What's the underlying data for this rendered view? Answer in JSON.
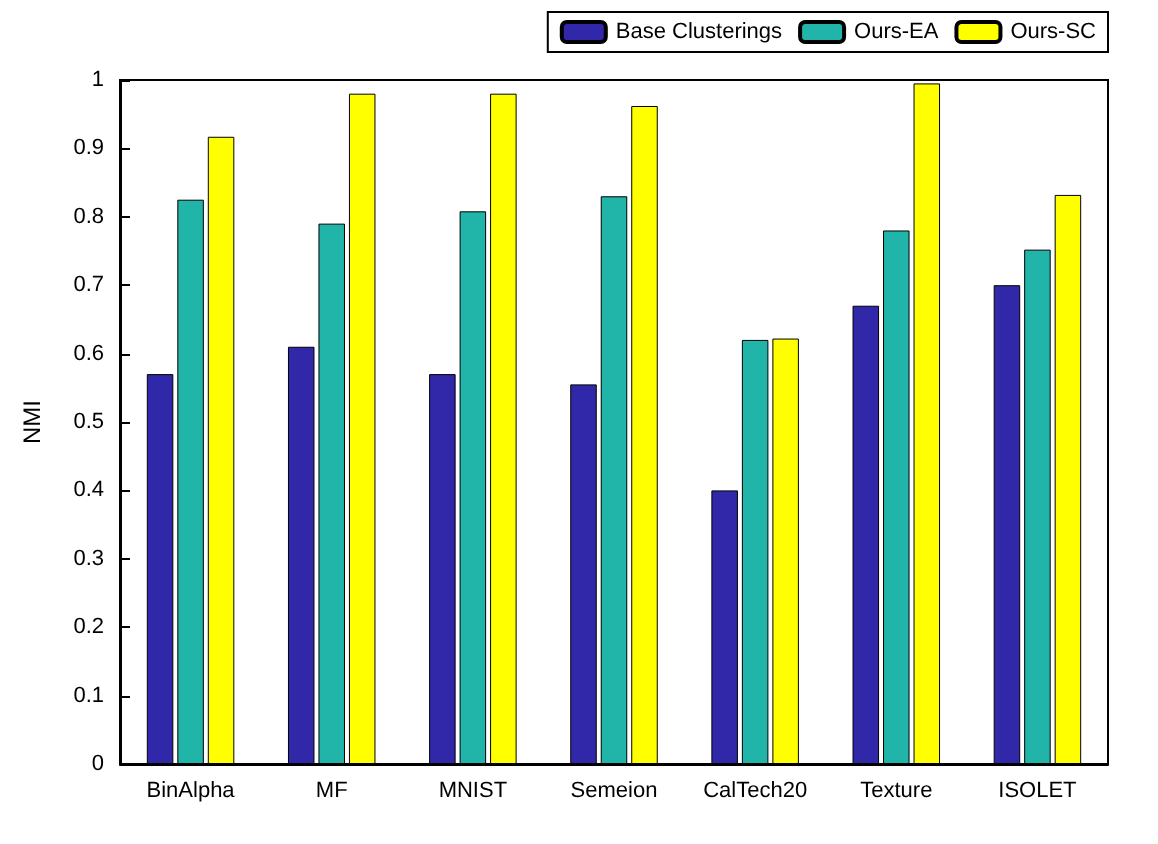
{
  "chart_data": {
    "type": "bar",
    "ylabel": "NMI",
    "categories": [
      "BinAlpha",
      "MF",
      "MNIST",
      "Semeion",
      "CalTech20",
      "Texture",
      "ISOLET"
    ],
    "series": [
      {
        "name": "Base Clusterings",
        "color": "#3028a8",
        "values": [
          0.57,
          0.61,
          0.57,
          0.555,
          0.4,
          0.67,
          0.7
        ]
      },
      {
        "name": "Ours-EA",
        "color": "#20b5a8",
        "values": [
          0.825,
          0.79,
          0.808,
          0.83,
          0.62,
          0.78,
          0.752
        ]
      },
      {
        "name": "Ours-SC",
        "color": "#ffff00",
        "values": [
          0.917,
          0.98,
          0.98,
          0.962,
          0.622,
          0.995,
          0.832
        ]
      }
    ],
    "ylim": [
      0,
      1
    ],
    "yticks": [
      0,
      0.1,
      0.2,
      0.3,
      0.4,
      0.5,
      0.6,
      0.7,
      0.8,
      0.9,
      1
    ],
    "grid": false,
    "legend": "top right"
  }
}
